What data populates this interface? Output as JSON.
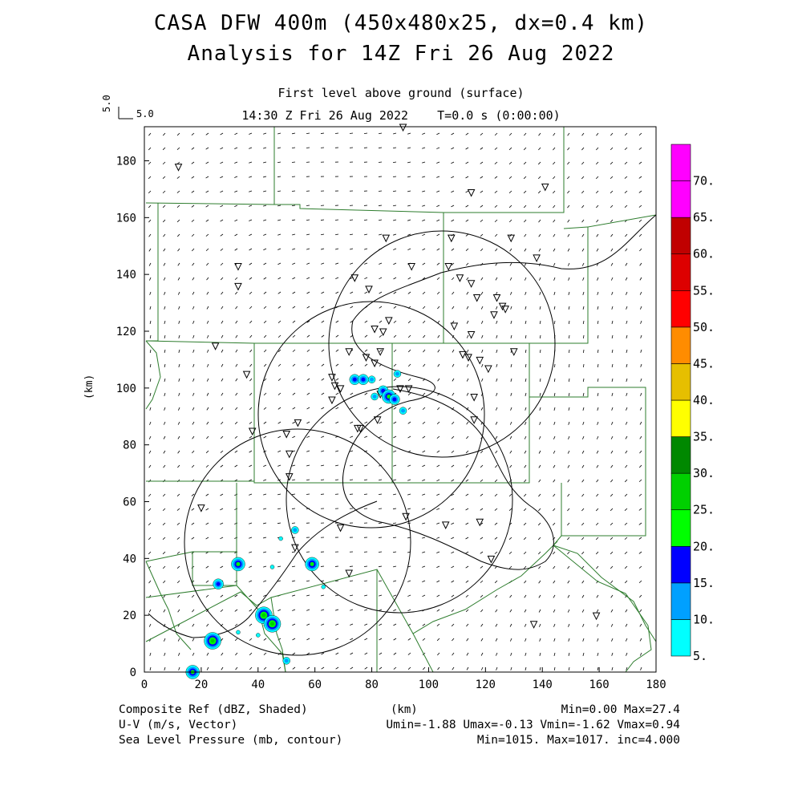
{
  "title": {
    "line1": "CASA DFW 400m (450x480x25, dx=0.4 km)",
    "line2": "Analysis for 14Z Fri 26 Aug 2022"
  },
  "subtitle": {
    "level": "First level above ground (surface)",
    "time": "14:30 Z Fri 26 Aug 2022    T=0.0 s (0:00:00)"
  },
  "vector_reference": {
    "label": "5.0",
    "rotated_label": "5.0"
  },
  "axes": {
    "ylabel": "(km)",
    "xlabel": "(km)",
    "x_ticks": [
      "0",
      "20",
      "40",
      "60",
      "80",
      "100",
      "120",
      "140",
      "160",
      "180"
    ],
    "y_ticks": [
      "0",
      "20",
      "40",
      "60",
      "80",
      "100",
      "120",
      "140",
      "160",
      "180"
    ],
    "x_range": [
      0,
      180
    ],
    "y_range": [
      0,
      192
    ]
  },
  "colorbar": {
    "labels": [
      "5.",
      "10.",
      "15.",
      "20.",
      "25.",
      "30.",
      "35.",
      "40.",
      "45.",
      "50.",
      "55.",
      "60.",
      "65.",
      "70."
    ],
    "colors": [
      "#00ffff",
      "#00a0ff",
      "#0000ff",
      "#00ff00",
      "#00d000",
      "#008800",
      "#ffff00",
      "#e6bf00",
      "#ff8c00",
      "#ff0000",
      "#dd0000",
      "#c00000",
      "#ff00ff",
      "#ff00ff"
    ]
  },
  "footer": {
    "left1": "Composite Ref (dBZ, Shaded)",
    "left2": "U-V (m/s, Vector)",
    "left3": "Sea Level Pressure (mb, contour)",
    "center1": "(km)",
    "right1": "Min=0.00 Max=27.4",
    "right2": "Umin=-1.88 Umax=-0.13 Vmin=-1.62 Vmax=0.94",
    "right3": "Min=1015. Max=1017. inc=4.000"
  },
  "chart_data": {
    "type": "heatmap",
    "field": "Composite Ref (dBZ, Shaded)",
    "value_min": 0.0,
    "value_max": 27.4,
    "radar_rings_km": [
      {
        "center": [
          115,
          115
        ],
        "radius": 40
      },
      {
        "center": [
          80,
          90
        ],
        "radius": 40
      },
      {
        "center": [
          95,
          60
        ],
        "radius": 40
      },
      {
        "center": [
          45,
          45
        ],
        "radius": 40
      }
    ],
    "echo_cells_km": [
      {
        "x": 74,
        "y": 103,
        "dbz": 18
      },
      {
        "x": 77,
        "y": 103,
        "dbz": 16
      },
      {
        "x": 80,
        "y": 103,
        "dbz": 12
      },
      {
        "x": 84,
        "y": 99,
        "dbz": 18
      },
      {
        "x": 86,
        "y": 97,
        "dbz": 20
      },
      {
        "x": 88,
        "y": 96,
        "dbz": 18
      },
      {
        "x": 89,
        "y": 105,
        "dbz": 14
      },
      {
        "x": 91,
        "y": 92,
        "dbz": 10
      },
      {
        "x": 81,
        "y": 97,
        "dbz": 10
      },
      {
        "x": 33,
        "y": 38,
        "dbz": 22
      },
      {
        "x": 26,
        "y": 31,
        "dbz": 18
      },
      {
        "x": 59,
        "y": 38,
        "dbz": 20
      },
      {
        "x": 42,
        "y": 20,
        "dbz": 27
      },
      {
        "x": 45,
        "y": 17,
        "dbz": 26
      },
      {
        "x": 24,
        "y": 11,
        "dbz": 25
      },
      {
        "x": 17,
        "y": 0,
        "dbz": 20
      },
      {
        "x": 50,
        "y": 4,
        "dbz": 14
      },
      {
        "x": 53,
        "y": 50,
        "dbz": 10
      },
      {
        "x": 48,
        "y": 47,
        "dbz": 8
      },
      {
        "x": 45,
        "y": 37,
        "dbz": 8
      },
      {
        "x": 33,
        "y": 14,
        "dbz": 8
      },
      {
        "x": 40,
        "y": 13,
        "dbz": 8
      },
      {
        "x": 63,
        "y": 30,
        "dbz": 8
      }
    ],
    "wind_vectors": "U-V field, Umin=-1.88 Umax=-0.13 Vmin=-1.62 Vmax=0.94",
    "pressure_contours_mb": {
      "min": 1015,
      "max": 1017,
      "inc": 4.0
    },
    "station_markers_km": [
      [
        12,
        178
      ],
      [
        115,
        169
      ],
      [
        141,
        171
      ],
      [
        33,
        143
      ],
      [
        33,
        136
      ],
      [
        74,
        139
      ],
      [
        79,
        135
      ],
      [
        86,
        124
      ],
      [
        81,
        121
      ],
      [
        84,
        120
      ],
      [
        85,
        153
      ],
      [
        94,
        143
      ],
      [
        108,
        153
      ],
      [
        107,
        143
      ],
      [
        129,
        153
      ],
      [
        138,
        146
      ],
      [
        111,
        139
      ],
      [
        115,
        137
      ],
      [
        117,
        132
      ],
      [
        124,
        132
      ],
      [
        126,
        129
      ],
      [
        127,
        128
      ],
      [
        123,
        126
      ],
      [
        109,
        122
      ],
      [
        115,
        119
      ],
      [
        112,
        112
      ],
      [
        114,
        111
      ],
      [
        118,
        110
      ],
      [
        121,
        107
      ],
      [
        130,
        113
      ],
      [
        25,
        115
      ],
      [
        36,
        105
      ],
      [
        66,
        104
      ],
      [
        67,
        101
      ],
      [
        69,
        100
      ],
      [
        66,
        96
      ],
      [
        78,
        111
      ],
      [
        81,
        109
      ],
      [
        83,
        113
      ],
      [
        83,
        98
      ],
      [
        86,
        98
      ],
      [
        90,
        100
      ],
      [
        93,
        100
      ],
      [
        72,
        113
      ],
      [
        116,
        97
      ],
      [
        116,
        89
      ],
      [
        54,
        88
      ],
      [
        50,
        84
      ],
      [
        38,
        85
      ],
      [
        75,
        86
      ],
      [
        76,
        86
      ],
      [
        82,
        89
      ],
      [
        51,
        77
      ],
      [
        51,
        69
      ],
      [
        20,
        58
      ],
      [
        69,
        51
      ],
      [
        92,
        55
      ],
      [
        106,
        52
      ],
      [
        118,
        53
      ],
      [
        122,
        40
      ],
      [
        72,
        35
      ],
      [
        53,
        44
      ],
      [
        91,
        192
      ],
      [
        137,
        17
      ],
      [
        159,
        20
      ]
    ]
  }
}
